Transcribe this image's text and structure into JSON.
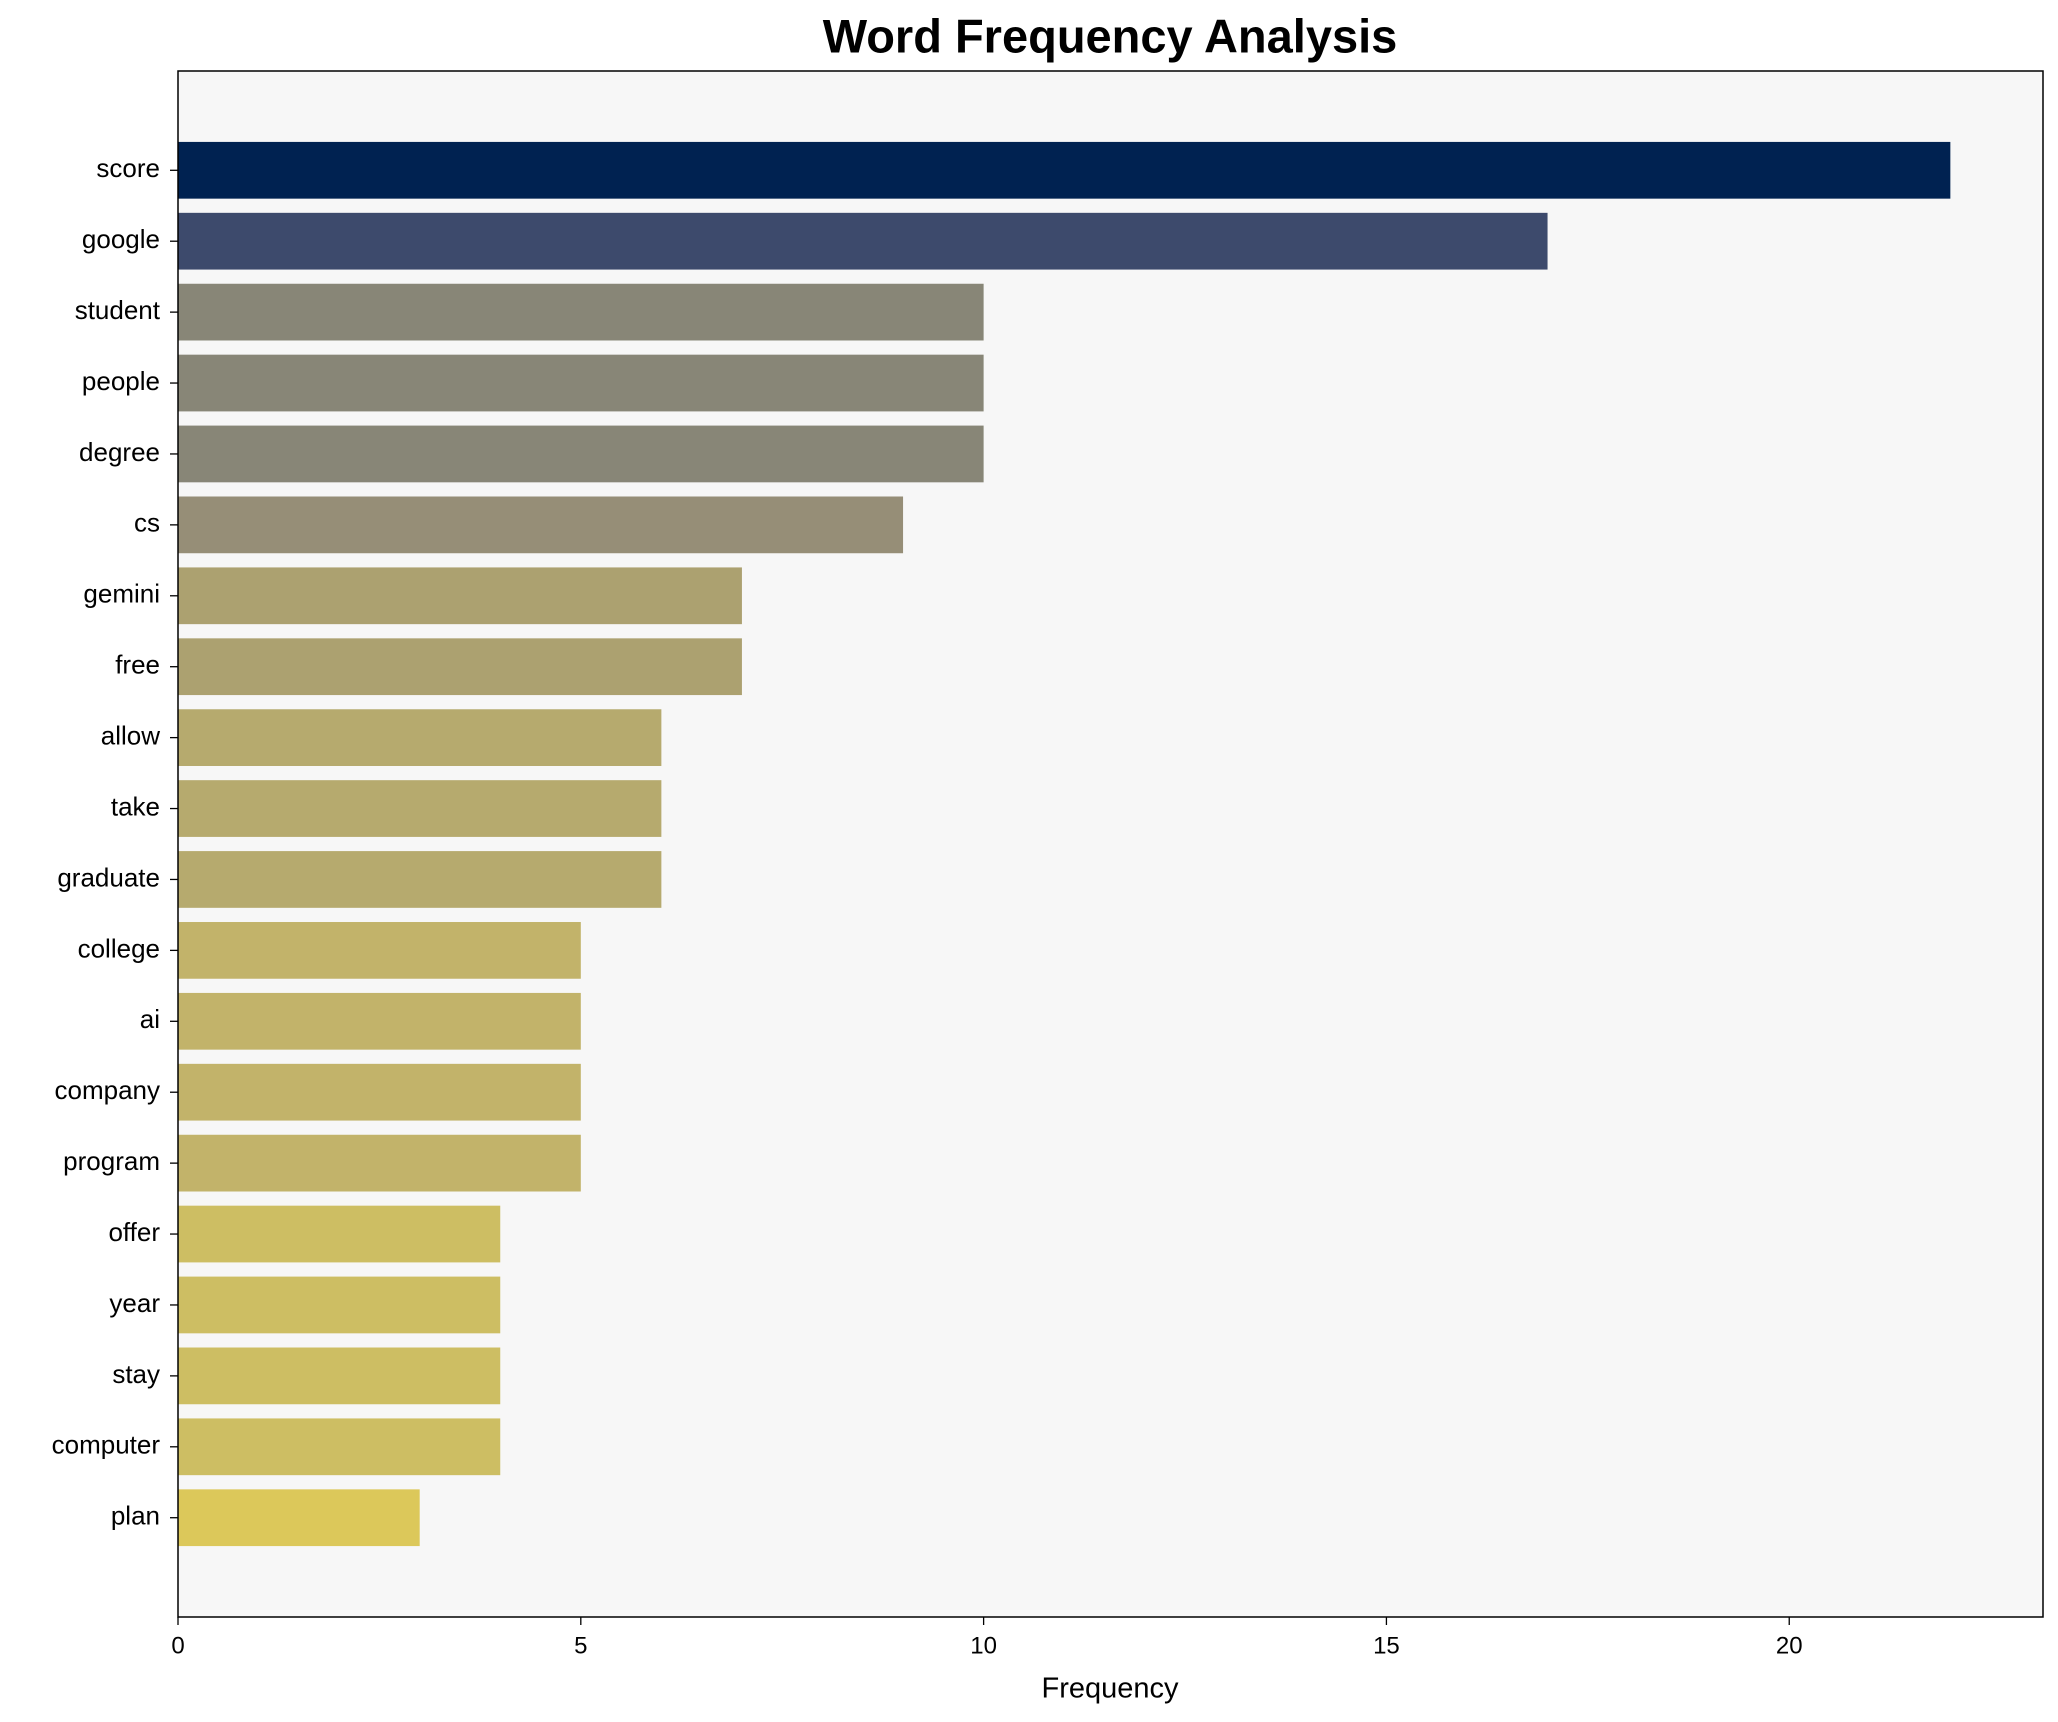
{
  "chart_data": {
    "type": "barh",
    "title": "Word Frequency Analysis",
    "xlabel": "Frequency",
    "categories": [
      "score",
      "google",
      "student",
      "people",
      "degree",
      "cs",
      "gemini",
      "free",
      "allow",
      "take",
      "graduate",
      "college",
      "ai",
      "company",
      "program",
      "offer",
      "year",
      "stay",
      "computer",
      "plan"
    ],
    "values": [
      22,
      17,
      10,
      10,
      10,
      9,
      7,
      7,
      6,
      6,
      6,
      5,
      5,
      5,
      5,
      4,
      4,
      4,
      4,
      3
    ],
    "colors": [
      "#002251",
      "#3d4a6c",
      "#888677",
      "#888677",
      "#888677",
      "#968e77",
      "#aca170",
      "#aca170",
      "#b6aa6e",
      "#b6aa6e",
      "#b6aa6e",
      "#c2b36a",
      "#c2b36a",
      "#c2b36a",
      "#c2b36a",
      "#cdbe63",
      "#cdbe63",
      "#cdbe63",
      "#cdbe63",
      "#dcc85a"
    ],
    "xlim": [
      0,
      23.15
    ],
    "xticks": [
      0,
      5,
      10,
      15,
      20
    ],
    "background": "#f7f7f7"
  }
}
